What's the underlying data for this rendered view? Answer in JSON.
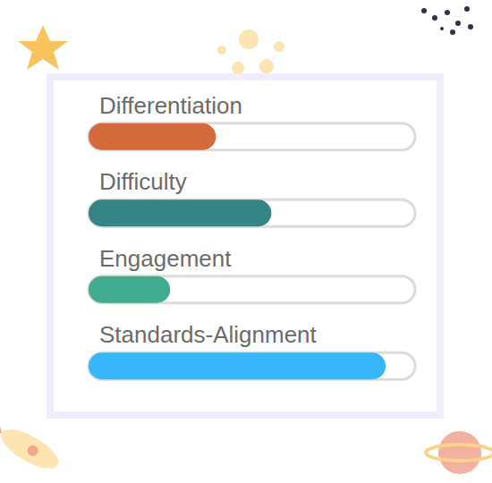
{
  "chart_data": {
    "type": "bar",
    "orientation": "horizontal",
    "categories": [
      "Differentiation",
      "Difficulty",
      "Engagement",
      "Standards-Alignment"
    ],
    "values": [
      39,
      56,
      25,
      91
    ],
    "colors": [
      "#d4693a",
      "#348486",
      "#40ab8f",
      "#38b6fb"
    ],
    "xlim": [
      0,
      100
    ],
    "grid": false,
    "tick_labels": "y"
  }
}
